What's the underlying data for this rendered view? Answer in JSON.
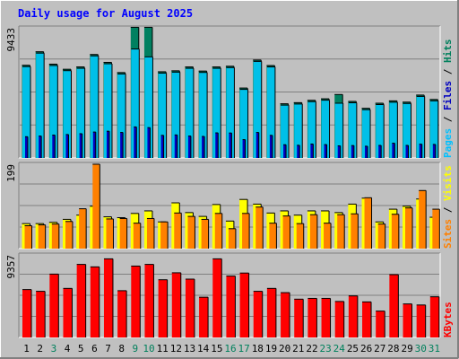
{
  "title": "Daily usage for August 2025",
  "colors": {
    "background": "#c0c0c0",
    "frame_light": "#ffffff",
    "frame_dark": "#808080",
    "title": "#0000ff",
    "hits": "#00805c",
    "files": "#00c0ff",
    "pages": "#00b0d0",
    "visits": "#ffff00",
    "sites": "#ff8000",
    "kbytes": "#ff0000",
    "weekday_label": "#000000",
    "weekend_label": "#00805c"
  },
  "chart_data": [
    {
      "type": "bar",
      "panel": "top",
      "y_max_label": "9433",
      "ylim": [
        0,
        9433
      ],
      "right_labels": [
        {
          "text": "Pages",
          "color": "#00c0ff"
        },
        {
          "text": " / ",
          "color": "#000000"
        },
        {
          "text": "Files",
          "color": "#0000c0"
        },
        {
          "text": " / ",
          "color": "#000000"
        },
        {
          "text": "Hits",
          "color": "#00805c"
        }
      ],
      "categories": [
        "1",
        "2",
        "3",
        "4",
        "5",
        "6",
        "7",
        "8",
        "9",
        "10",
        "11",
        "12",
        "13",
        "14",
        "15",
        "16",
        "17",
        "18",
        "19",
        "20",
        "21",
        "22",
        "23",
        "24",
        "25",
        "26",
        "27",
        "28",
        "29",
        "30",
        "31"
      ],
      "series": [
        {
          "name": "Hits",
          "values": [
            6720,
            7700,
            6800,
            6430,
            6600,
            7500,
            6930,
            6190,
            9470,
            9470,
            6250,
            6320,
            6600,
            6300,
            6600,
            6650,
            5070,
            7100,
            6700,
            3930,
            4010,
            4180,
            4290,
            4600,
            4100,
            3600,
            3970,
            4140,
            4050,
            4560,
            4240
          ]
        },
        {
          "name": "Files",
          "values": [
            6620,
            7600,
            6700,
            6330,
            6500,
            7400,
            6830,
            6090,
            7900,
            7330,
            6150,
            6220,
            6500,
            6200,
            6500,
            6550,
            4970,
            7000,
            6600,
            3830,
            3910,
            4080,
            4190,
            3970,
            4000,
            3500,
            3870,
            4040,
            3950,
            4460,
            4140
          ]
        },
        {
          "name": "Pages",
          "values": [
            1540,
            1590,
            1660,
            1700,
            1760,
            1880,
            1940,
            1850,
            2250,
            2200,
            1640,
            1670,
            1590,
            1560,
            1820,
            1810,
            1330,
            1850,
            1640,
            960,
            920,
            1010,
            970,
            880,
            900,
            850,
            910,
            1070,
            910,
            1000,
            980
          ]
        }
      ]
    },
    {
      "type": "bar",
      "panel": "middle",
      "y_max_label": "199",
      "ylim": [
        0,
        199
      ],
      "right_labels": [
        {
          "text": "Sites",
          "color": "#ff8000"
        },
        {
          "text": " / ",
          "color": "#000000"
        },
        {
          "text": "Visits",
          "color": "#ffff00"
        }
      ],
      "categories": [
        "1",
        "2",
        "3",
        "4",
        "5",
        "6",
        "7",
        "8",
        "9",
        "10",
        "11",
        "12",
        "13",
        "14",
        "15",
        "16",
        "17",
        "18",
        "19",
        "20",
        "21",
        "22",
        "23",
        "24",
        "25",
        "26",
        "27",
        "28",
        "29",
        "30",
        "31"
      ],
      "series": [
        {
          "name": "Visits",
          "values": [
            59,
            59,
            62,
            69,
            79,
            100,
            75,
            73,
            83,
            89,
            63,
            108,
            85,
            76,
            104,
            65,
            116,
            105,
            84,
            89,
            79,
            89,
            89,
            85,
            105,
            119,
            63,
            93,
            100,
            117,
            74
          ]
        },
        {
          "name": "Sites",
          "values": [
            54,
            56,
            58,
            64,
            94,
            199,
            70,
            71,
            60,
            71,
            63,
            84,
            76,
            69,
            83,
            47,
            83,
            98,
            60,
            77,
            59,
            80,
            60,
            80,
            82,
            120,
            58,
            81,
            96,
            137,
            93
          ]
        }
      ]
    },
    {
      "type": "bar",
      "panel": "bottom",
      "y_max_label": "9357",
      "ylim": [
        0,
        9357
      ],
      "right_labels": [
        {
          "text": "KBytes",
          "color": "#ff0000"
        }
      ],
      "categories": [
        "1",
        "2",
        "3",
        "4",
        "5",
        "6",
        "7",
        "8",
        "9",
        "10",
        "11",
        "12",
        "13",
        "14",
        "15",
        "16",
        "17",
        "18",
        "19",
        "20",
        "21",
        "22",
        "23",
        "24",
        "25",
        "26",
        "27",
        "28",
        "29",
        "30",
        "31"
      ],
      "series": [
        {
          "name": "KBytes",
          "values": [
            5430,
            5230,
            7180,
            5560,
            8280,
            8000,
            8910,
            5300,
            8090,
            8280,
            6540,
            7330,
            6610,
            4560,
            8910,
            6960,
            7300,
            5230,
            5560,
            5080,
            4340,
            4430,
            4430,
            4080,
            4710,
            4030,
            2990,
            7120,
            3800,
            3680,
            4610
          ]
        }
      ]
    }
  ],
  "x_labels": [
    {
      "day": "1",
      "weekend": false
    },
    {
      "day": "2",
      "weekend": false
    },
    {
      "day": "3",
      "weekend": true
    },
    {
      "day": "4",
      "weekend": false
    },
    {
      "day": "5",
      "weekend": false
    },
    {
      "day": "6",
      "weekend": false
    },
    {
      "day": "7",
      "weekend": false
    },
    {
      "day": "8",
      "weekend": false
    },
    {
      "day": "9",
      "weekend": true
    },
    {
      "day": "10",
      "weekend": true
    },
    {
      "day": "11",
      "weekend": false
    },
    {
      "day": "12",
      "weekend": false
    },
    {
      "day": "13",
      "weekend": false
    },
    {
      "day": "14",
      "weekend": false
    },
    {
      "day": "15",
      "weekend": false
    },
    {
      "day": "16",
      "weekend": true
    },
    {
      "day": "17",
      "weekend": true
    },
    {
      "day": "18",
      "weekend": false
    },
    {
      "day": "19",
      "weekend": false
    },
    {
      "day": "20",
      "weekend": false
    },
    {
      "day": "21",
      "weekend": false
    },
    {
      "day": "22",
      "weekend": false
    },
    {
      "day": "23",
      "weekend": true
    },
    {
      "day": "24",
      "weekend": true
    },
    {
      "day": "25",
      "weekend": false
    },
    {
      "day": "26",
      "weekend": false
    },
    {
      "day": "27",
      "weekend": false
    },
    {
      "day": "28",
      "weekend": false
    },
    {
      "day": "29",
      "weekend": false
    },
    {
      "day": "30",
      "weekend": true
    },
    {
      "day": "31",
      "weekend": true
    }
  ]
}
